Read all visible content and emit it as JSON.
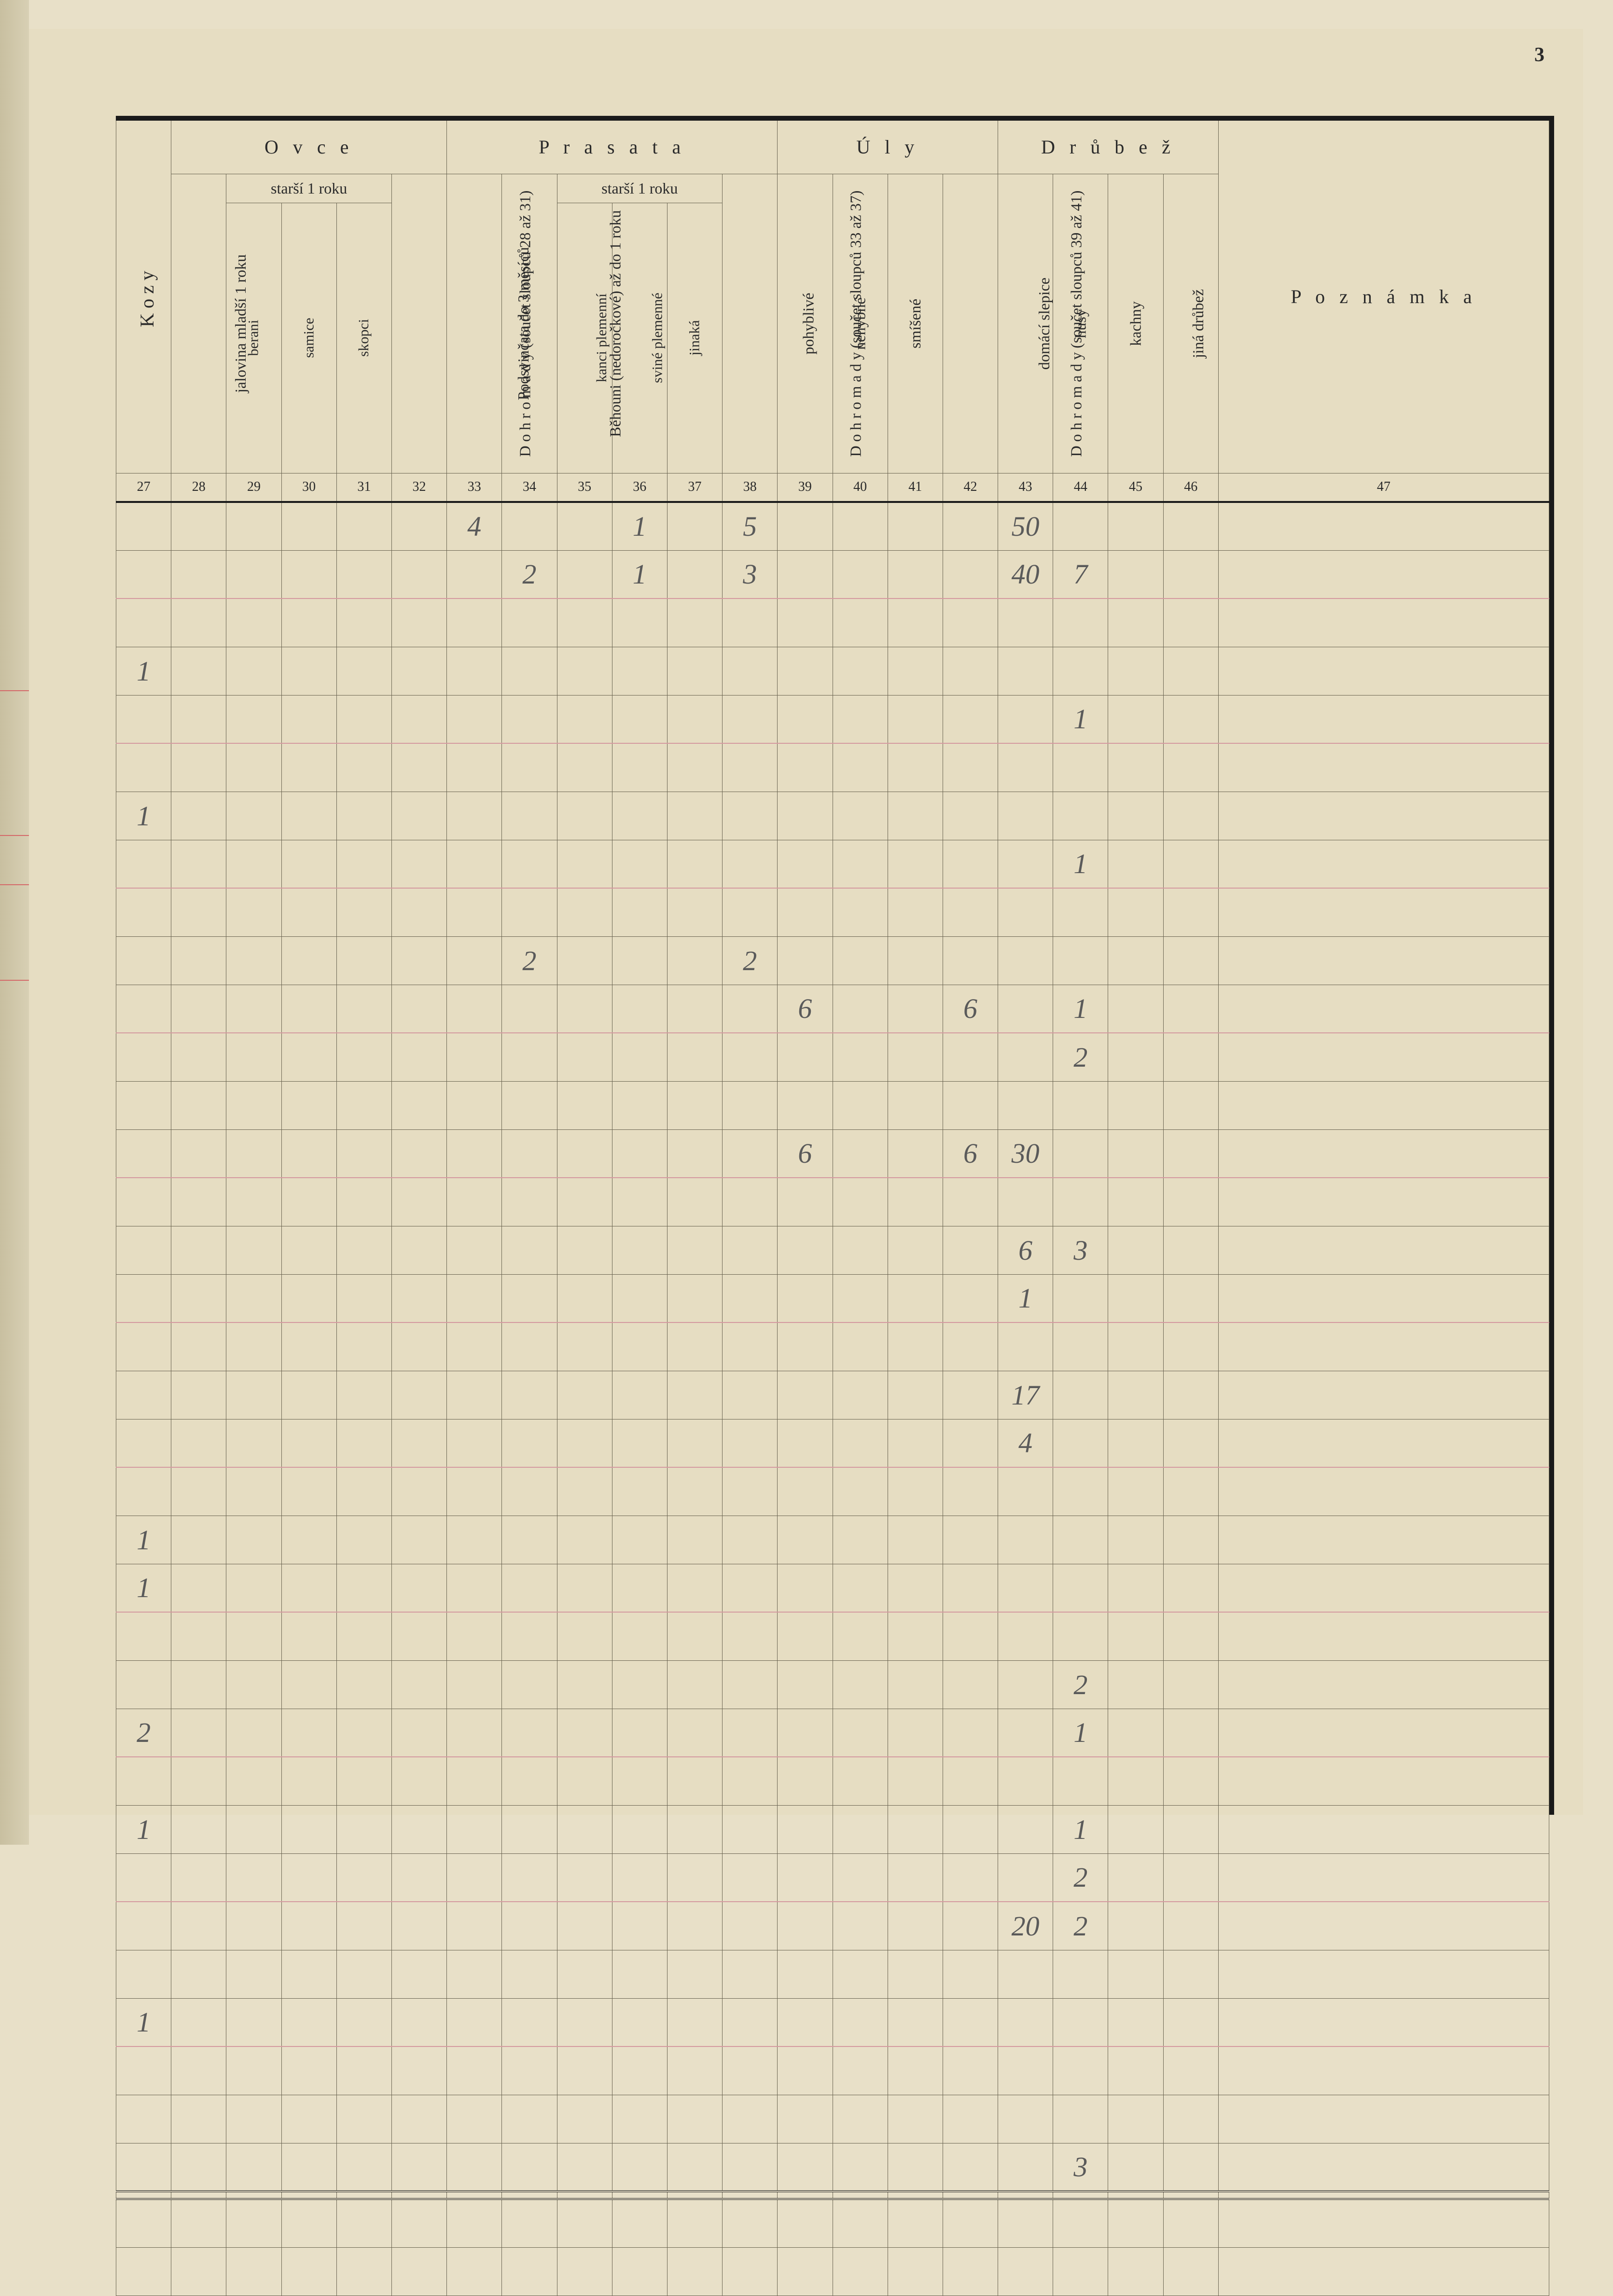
{
  "page_number": "3",
  "groups": {
    "kozy": "Kozy",
    "ovce": "O v c e",
    "prasata": "P r a s a t a",
    "uly": "Ú l y",
    "drubez": "D r ů b e ž",
    "poznamka": "P o z n á m k a"
  },
  "subgroups": {
    "ovce_starsi": "starší 1 roku",
    "prasata_starsi": "starší 1 roku"
  },
  "columns": [
    {
      "num": "27",
      "label": ""
    },
    {
      "num": "28",
      "label": "jalovina mladší 1 roku"
    },
    {
      "num": "29",
      "label": "berani"
    },
    {
      "num": "30",
      "label": "samice"
    },
    {
      "num": "31",
      "label": "skopci"
    },
    {
      "num": "32",
      "label": "D o h r o m a d y\n(součet sloupců 28 až 31)"
    },
    {
      "num": "33",
      "label": "Podsvinčata do 3 měsíců"
    },
    {
      "num": "34",
      "label": "Běhouni (nedoročkové) až do 1 roku"
    },
    {
      "num": "35",
      "label": "kanci plemenní"
    },
    {
      "num": "36",
      "label": "sviné plemenné"
    },
    {
      "num": "37",
      "label": "jinaká"
    },
    {
      "num": "38",
      "label": "D o h r o m a d y\n(součet sloupců 33 až 37)"
    },
    {
      "num": "39",
      "label": "pohyblivé"
    },
    {
      "num": "40",
      "label": "nehybné"
    },
    {
      "num": "41",
      "label": "smíšené"
    },
    {
      "num": "42",
      "label": "D o h r o m a d y\n(součet sloupců 39 až 41)"
    },
    {
      "num": "43",
      "label": "domácí slepice"
    },
    {
      "num": "44",
      "label": "husy"
    },
    {
      "num": "45",
      "label": "kachny"
    },
    {
      "num": "46",
      "label": "jiná drůbež"
    },
    {
      "num": "47",
      "label": ""
    }
  ],
  "rows": [
    {
      "c33": "4",
      "c36": "1",
      "c38": "5",
      "c43": "50"
    },
    {
      "c34": "2",
      "c36": "1",
      "c38": "3",
      "c43": "40",
      "c44": "7",
      "pink": true
    },
    {},
    {
      "c27": "1"
    },
    {
      "c44": "1",
      "pink": true
    },
    {},
    {
      "c27": "1"
    },
    {
      "c44": "1",
      "pink": true
    },
    {},
    {
      "c34": "2",
      "c38": "2"
    },
    {
      "c39": "6",
      "c42": "6",
      "c44": "1",
      "pink": true
    },
    {
      "c44": "2"
    },
    {},
    {
      "c39": "6",
      "c42": "6",
      "c43": "30",
      "pink": true
    },
    {},
    {
      "c43": "6",
      "c44": "3"
    },
    {
      "c43": "1",
      "pink": true
    },
    {},
    {
      "c43": "17"
    },
    {
      "c43": "4",
      "pink": true
    },
    {},
    {
      "c27": "1"
    },
    {
      "c27": "1",
      "pink": true
    },
    {},
    {
      "c44": "2"
    },
    {
      "c27": "2",
      "c44": "1",
      "pink": true
    },
    {},
    {
      "c27": "1",
      "c44": "1"
    },
    {
      "c44": "2",
      "pink": true
    },
    {
      "c43": "20",
      "c44": "2"
    },
    {},
    {
      "c27": "1",
      "pink": true
    },
    {},
    {},
    {
      "c44": "3",
      "pink": true
    }
  ],
  "colors": {
    "paper": "#e6ddc2",
    "ink": "#2a2a2a",
    "pencil": "#5a5a5a",
    "rule": "#6b6552",
    "pink": "#d49aa0"
  }
}
